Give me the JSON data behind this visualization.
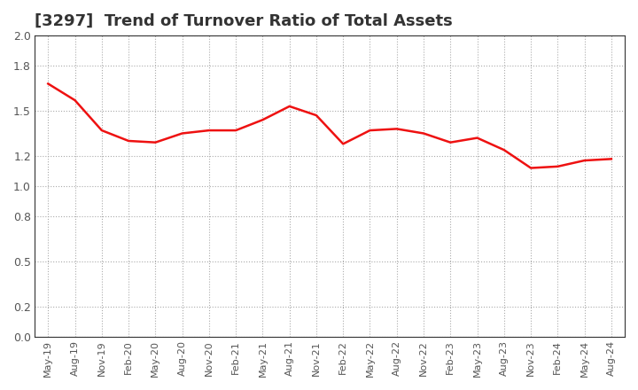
{
  "title": "[3297]  Trend of Turnover Ratio of Total Assets",
  "title_fontsize": 13,
  "title_fontweight": "bold",
  "line_color": "#EE1111",
  "line_width": 1.8,
  "background_color": "#FFFFFF",
  "plot_bg_color": "#FFFFFF",
  "grid_color": "#AAAAAA",
  "ylim": [
    0.0,
    2.0
  ],
  "yticks": [
    0.0,
    0.2,
    0.5,
    0.8,
    1.0,
    1.2,
    1.5,
    1.8,
    2.0
  ],
  "xlabel_fontsize": 8,
  "ylabel_fontsize": 9,
  "labels": [
    "May-19",
    "Aug-19",
    "Nov-19",
    "Feb-20",
    "May-20",
    "Aug-20",
    "Nov-20",
    "Feb-21",
    "May-21",
    "Aug-21",
    "Nov-21",
    "Feb-22",
    "May-22",
    "Aug-22",
    "Nov-22",
    "Feb-23",
    "May-23",
    "Aug-23",
    "Nov-23",
    "Feb-24",
    "May-24",
    "Aug-24"
  ],
  "values": [
    1.68,
    1.57,
    1.37,
    1.3,
    1.29,
    1.35,
    1.37,
    1.37,
    1.44,
    1.53,
    1.47,
    1.28,
    1.37,
    1.38,
    1.35,
    1.29,
    1.32,
    1.24,
    1.12,
    1.13,
    1.17,
    1.18
  ]
}
